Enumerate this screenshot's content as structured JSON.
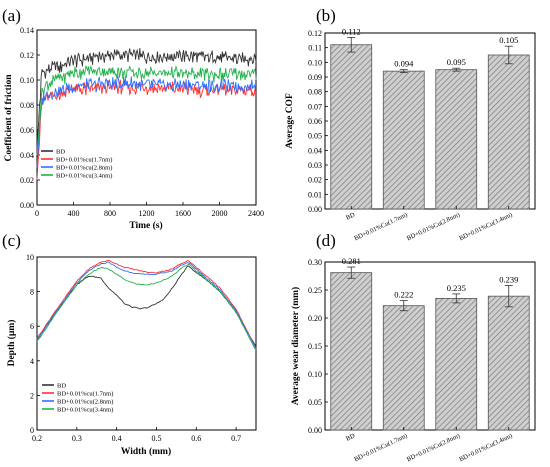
{
  "colors": {
    "BD": "#333333",
    "cu17": "#ff3030",
    "cu28": "#2e6fff",
    "cu34": "#22b14c",
    "bar_fill": "#c8c8c8",
    "bar_stroke": "#555555"
  },
  "chart_data": [
    {
      "panel": "(a)",
      "type": "line",
      "xlabel": "Time (s)",
      "ylabel": "Coefficient of friction",
      "xlim": [
        0,
        2400
      ],
      "ylim": [
        0,
        0.14
      ],
      "xticks": [
        "0",
        "400",
        "800",
        "1200",
        "1600",
        "2000",
        "2400"
      ],
      "yticks": [
        "0.00",
        "0.02",
        "0.04",
        "0.06",
        "0.08",
        "0.10",
        "0.12",
        "0.14"
      ],
      "legend": "lower-left",
      "series": [
        {
          "name": "BD",
          "color": "#333333",
          "x": [
            0,
            50,
            100,
            200,
            300,
            400,
            600,
            800,
            1000,
            1200,
            1400,
            1600,
            1800,
            2000,
            2200,
            2400
          ],
          "y": [
            0.045,
            0.105,
            0.108,
            0.11,
            0.112,
            0.115,
            0.118,
            0.12,
            0.12,
            0.119,
            0.119,
            0.119,
            0.118,
            0.118,
            0.117,
            0.117
          ]
        },
        {
          "name": "BD+0.01%cu(1.7nm)",
          "color": "#ff3030",
          "x": [
            0,
            50,
            100,
            200,
            300,
            400,
            600,
            800,
            1000,
            1200,
            1400,
            1600,
            1800,
            2000,
            2200,
            2400
          ],
          "y": [
            0.02,
            0.08,
            0.085,
            0.088,
            0.09,
            0.092,
            0.093,
            0.094,
            0.094,
            0.094,
            0.093,
            0.093,
            0.092,
            0.092,
            0.092,
            0.092
          ]
        },
        {
          "name": "BD+0.01%cu(2.8nm)",
          "color": "#2e6fff",
          "x": [
            0,
            50,
            100,
            200,
            300,
            400,
            600,
            800,
            1000,
            1200,
            1400,
            1600,
            1800,
            2000,
            2200,
            2400
          ],
          "y": [
            0.03,
            0.085,
            0.088,
            0.09,
            0.093,
            0.095,
            0.096,
            0.097,
            0.097,
            0.096,
            0.096,
            0.096,
            0.095,
            0.095,
            0.095,
            0.095
          ]
        },
        {
          "name": "BD+0.01%cu(3.4nm)",
          "color": "#22b14c",
          "x": [
            0,
            50,
            100,
            200,
            300,
            400,
            600,
            800,
            1000,
            1200,
            1400,
            1600,
            1800,
            2000,
            2200,
            2400
          ],
          "y": [
            0.04,
            0.09,
            0.095,
            0.1,
            0.103,
            0.106,
            0.107,
            0.107,
            0.106,
            0.106,
            0.106,
            0.105,
            0.105,
            0.104,
            0.104,
            0.104
          ]
        }
      ]
    },
    {
      "panel": "(b)",
      "type": "bar",
      "ylabel": "Average COF",
      "ylim": [
        0,
        0.12
      ],
      "yticks": [
        "0.00",
        "0.01",
        "0.02",
        "0.03",
        "0.04",
        "0.05",
        "0.06",
        "0.07",
        "0.08",
        "0.09",
        "0.10",
        "0.11",
        "0.12"
      ],
      "categories": [
        "BD",
        "BD+0.01%Cu(1.7nm)",
        "BD+0.01%Cu(2.8nm)",
        "BD+0.01%Cu(3.4nm)"
      ],
      "values": [
        0.112,
        0.094,
        0.095,
        0.105
      ],
      "value_labels": [
        "0.112",
        "0.094",
        "0.095",
        "0.105"
      ],
      "errors": [
        0.005,
        0.001,
        0.001,
        0.006
      ]
    },
    {
      "panel": "(c)",
      "type": "line",
      "xlabel": "Width (mm)",
      "ylabel": "Depth (μm)",
      "xlim": [
        0.2,
        0.75
      ],
      "ylim": [
        0,
        10
      ],
      "xticks": [
        "0.2",
        "0.3",
        "0.4",
        "0.5",
        "0.6",
        "0.7"
      ],
      "yticks": [
        "0",
        "2",
        "4",
        "6",
        "8",
        "10"
      ],
      "legend": "lower-left",
      "series": [
        {
          "name": "BD",
          "color": "#333333",
          "x": [
            0.2,
            0.25,
            0.3,
            0.33,
            0.36,
            0.38,
            0.4,
            0.42,
            0.44,
            0.46,
            0.48,
            0.5,
            0.52,
            0.54,
            0.56,
            0.58,
            0.6,
            0.63,
            0.66,
            0.7,
            0.75
          ],
          "y": [
            5.2,
            6.9,
            8.4,
            8.9,
            8.8,
            8.2,
            7.8,
            7.3,
            7.1,
            7.0,
            7.1,
            7.3,
            7.6,
            8.2,
            8.9,
            9.5,
            9.1,
            8.6,
            8.0,
            6.8,
            4.8
          ]
        },
        {
          "name": "BD+0.01%cu(1.7nm)",
          "color": "#ff3030",
          "x": [
            0.2,
            0.25,
            0.3,
            0.33,
            0.36,
            0.38,
            0.4,
            0.42,
            0.44,
            0.46,
            0.48,
            0.5,
            0.52,
            0.54,
            0.56,
            0.58,
            0.6,
            0.63,
            0.66,
            0.7,
            0.75
          ],
          "y": [
            5.3,
            7.0,
            8.6,
            9.3,
            9.7,
            9.8,
            9.6,
            9.4,
            9.3,
            9.2,
            9.1,
            9.1,
            9.2,
            9.3,
            9.6,
            9.8,
            9.4,
            8.8,
            8.2,
            7.0,
            4.7
          ]
        },
        {
          "name": "BD+0.01%cu(2.8nm)",
          "color": "#2e6fff",
          "x": [
            0.2,
            0.25,
            0.3,
            0.33,
            0.36,
            0.38,
            0.4,
            0.42,
            0.44,
            0.46,
            0.48,
            0.5,
            0.52,
            0.54,
            0.56,
            0.58,
            0.6,
            0.63,
            0.66,
            0.7,
            0.75
          ],
          "y": [
            5.2,
            6.9,
            8.5,
            9.2,
            9.6,
            9.7,
            9.4,
            9.2,
            9.1,
            9.0,
            9.0,
            9.0,
            9.1,
            9.2,
            9.5,
            9.7,
            9.3,
            8.7,
            8.1,
            6.9,
            4.7
          ]
        },
        {
          "name": "BD+0.01%cu(3.4nm)",
          "color": "#22b14c",
          "x": [
            0.2,
            0.25,
            0.3,
            0.33,
            0.36,
            0.38,
            0.4,
            0.42,
            0.44,
            0.46,
            0.48,
            0.5,
            0.52,
            0.54,
            0.56,
            0.58,
            0.6,
            0.63,
            0.66,
            0.7,
            0.75
          ],
          "y": [
            5.1,
            6.8,
            8.4,
            9.0,
            9.4,
            9.3,
            9.0,
            8.7,
            8.5,
            8.4,
            8.4,
            8.5,
            8.7,
            8.9,
            9.3,
            9.6,
            9.2,
            8.6,
            8.0,
            6.8,
            4.6
          ]
        }
      ]
    },
    {
      "panel": "(d)",
      "type": "bar",
      "ylabel": "Average wear diameter (mm)",
      "ylim": [
        0,
        0.3
      ],
      "yticks": [
        "0.00",
        "0.05",
        "0.10",
        "0.15",
        "0.20",
        "0.25",
        "0.30"
      ],
      "categories": [
        "BD",
        "BD+0.01%Cu(1.7nm)",
        "BD+0.01%Cu(2.8nm)",
        "BD+0.01%Cu(3.4nm)"
      ],
      "values": [
        0.281,
        0.222,
        0.235,
        0.239
      ],
      "value_labels": [
        "0.281",
        "0.222",
        "0.235",
        "0.239"
      ],
      "errors": [
        0.01,
        0.009,
        0.008,
        0.019
      ]
    }
  ]
}
